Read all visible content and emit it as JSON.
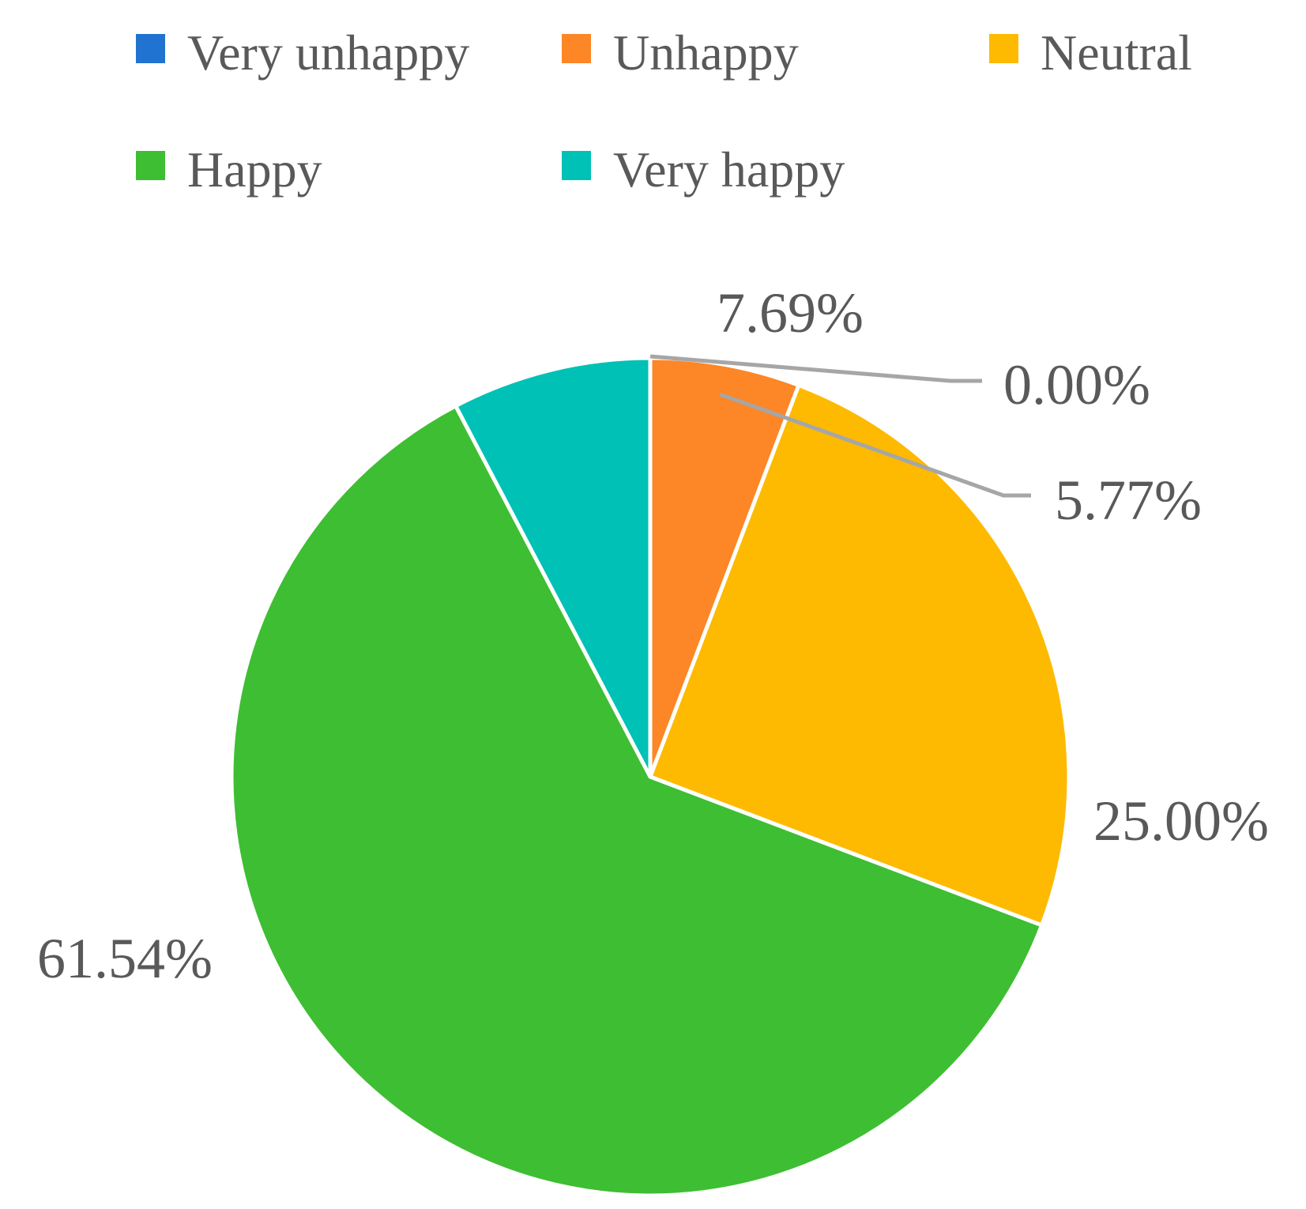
{
  "chart_data": {
    "type": "pie",
    "categories": [
      "Very unhappy",
      "Unhappy",
      "Neutral",
      "Happy",
      "Very happy"
    ],
    "values": [
      0.0,
      5.77,
      25.0,
      61.54,
      7.69
    ],
    "labels": [
      "0.00%",
      "5.77%",
      "25.00%",
      "61.54%",
      "7.69%"
    ],
    "colors": [
      "#2073D0",
      "#FD8626",
      "#FDBA00",
      "#3EBE32",
      "#00C1B5"
    ],
    "legend_position": "top",
    "start_angle_deg": 0,
    "direction": "clockwise"
  }
}
